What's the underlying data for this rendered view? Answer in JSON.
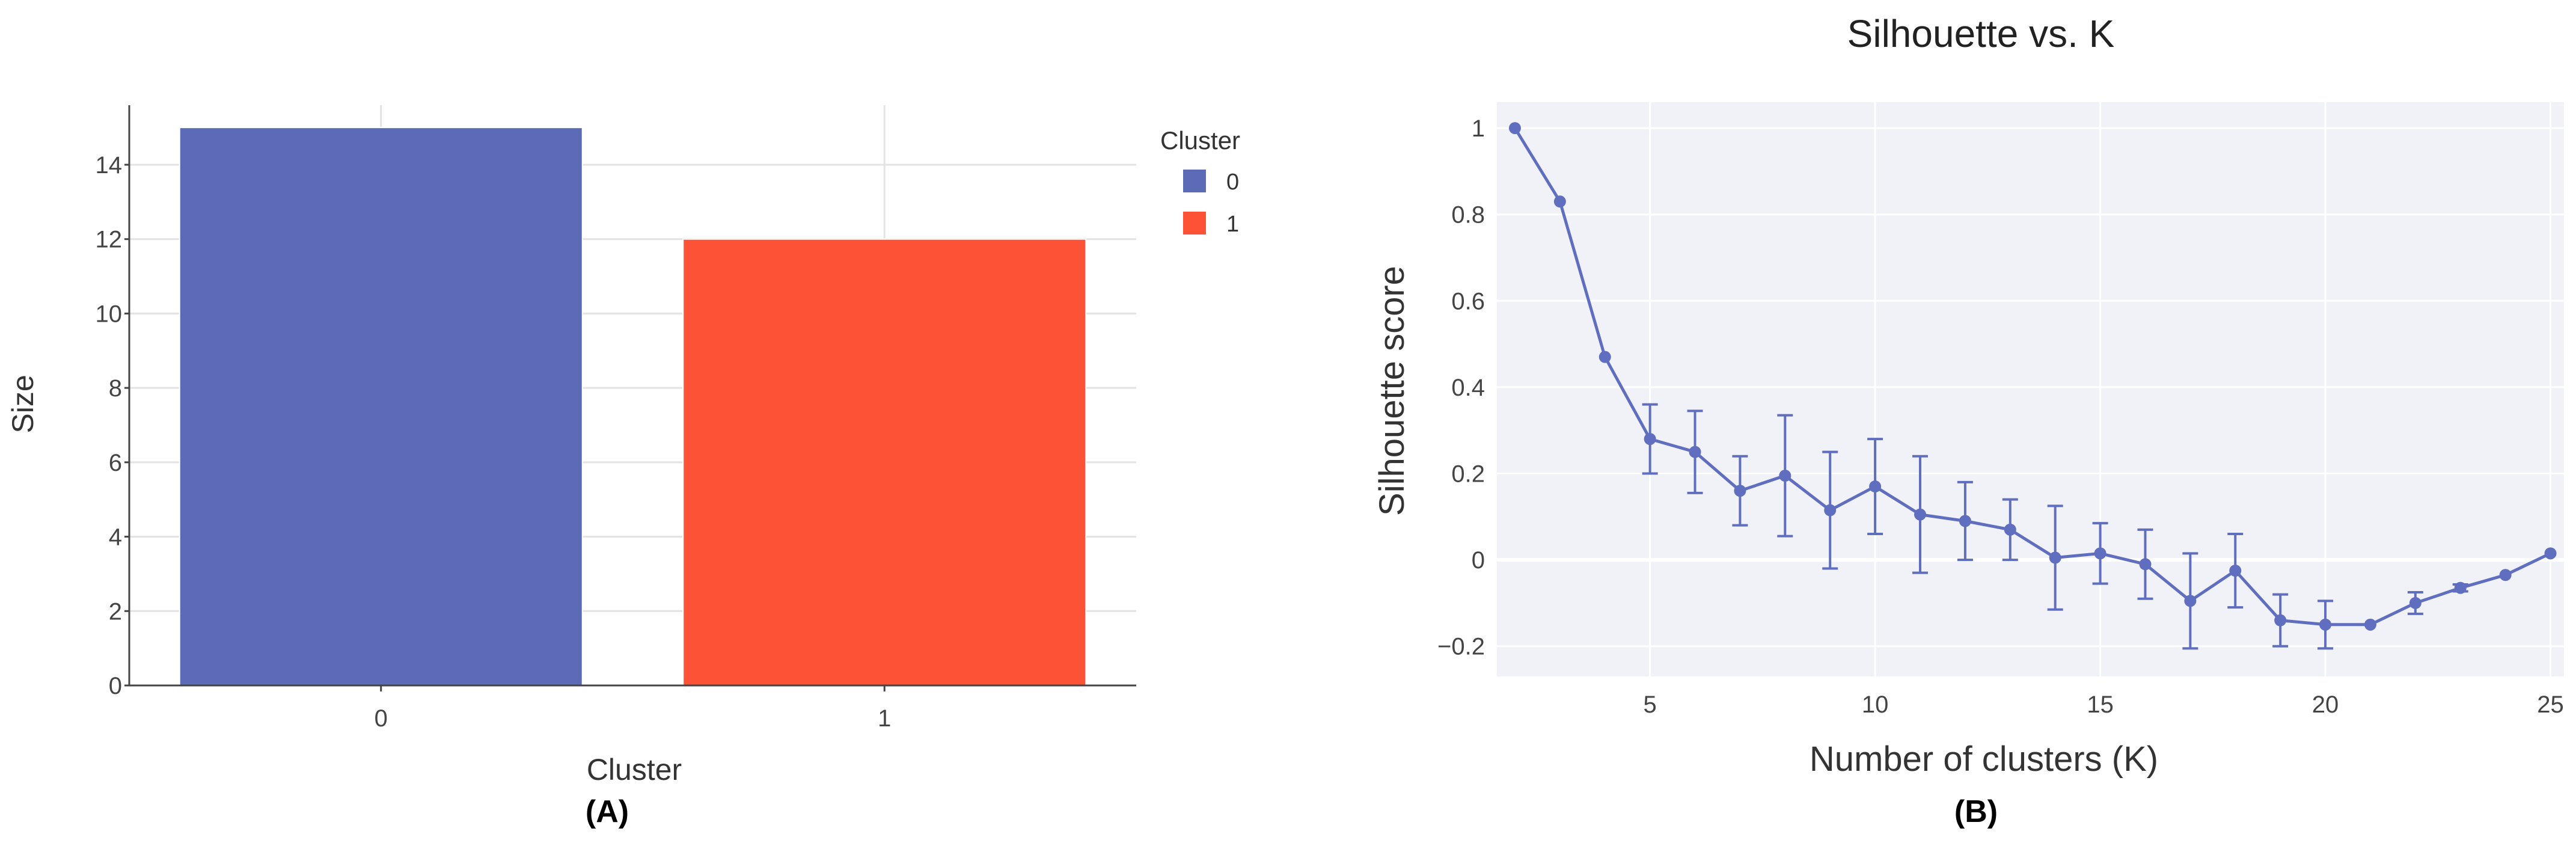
{
  "panels": {
    "a_label": "(A)",
    "b_label": "(B)"
  },
  "chart_data": [
    {
      "type": "bar",
      "title": "",
      "xlabel": "Cluster",
      "ylabel": "Size",
      "categories": [
        "0",
        "1"
      ],
      "values": [
        15,
        12
      ],
      "colors": [
        "#5b6bb5",
        "#fe5236"
      ],
      "ylim": [
        0,
        15.6
      ],
      "yticks": [
        0,
        2,
        4,
        6,
        8,
        10,
        12,
        14
      ],
      "grid": true,
      "legend": {
        "title": "Cluster",
        "placement": "top-right",
        "items": [
          {
            "label": "0",
            "color": "#5b6bb5"
          },
          {
            "label": "1",
            "color": "#fe5236"
          }
        ]
      }
    },
    {
      "type": "line",
      "title": "Silhouette vs. K",
      "xlabel": "Number of clusters (K)",
      "ylabel": "Silhouette score",
      "color": "#5f6ebe",
      "background": "#f1f2f8",
      "grid": true,
      "xlim": [
        1.6,
        25.3
      ],
      "ylim": [
        -0.27,
        1.06
      ],
      "xticks": [
        5,
        10,
        15,
        20,
        25
      ],
      "yticks": [
        {
          "value": 1,
          "label": "1"
        },
        {
          "value": 0.8,
          "label": "0.8"
        },
        {
          "value": 0.6,
          "label": "0.6"
        },
        {
          "value": 0.4,
          "label": "0.4"
        },
        {
          "value": 0.2,
          "label": "0.2"
        },
        {
          "value": 0,
          "label": "0"
        },
        {
          "value": -0.2,
          "label": "−0.2"
        }
      ],
      "x": [
        2,
        3,
        4,
        5,
        6,
        7,
        8,
        9,
        10,
        11,
        12,
        13,
        14,
        15,
        16,
        17,
        18,
        19,
        20,
        21,
        22,
        23,
        24,
        25
      ],
      "y": [
        1.0,
        0.83,
        0.47,
        0.28,
        0.25,
        0.16,
        0.195,
        0.115,
        0.17,
        0.105,
        0.09,
        0.07,
        0.005,
        0.015,
        -0.01,
        -0.095,
        -0.025,
        -0.14,
        -0.15,
        -0.15,
        -0.1,
        -0.065,
        -0.035,
        0.015
      ],
      "error": [
        0.0,
        0.0,
        0.0,
        0.08,
        0.095,
        0.08,
        0.14,
        0.135,
        0.11,
        0.135,
        0.09,
        0.07,
        0.12,
        0.07,
        0.08,
        0.11,
        0.085,
        0.06,
        0.055,
        0.0,
        0.025,
        0.008,
        0.0,
        0.0
      ]
    }
  ]
}
